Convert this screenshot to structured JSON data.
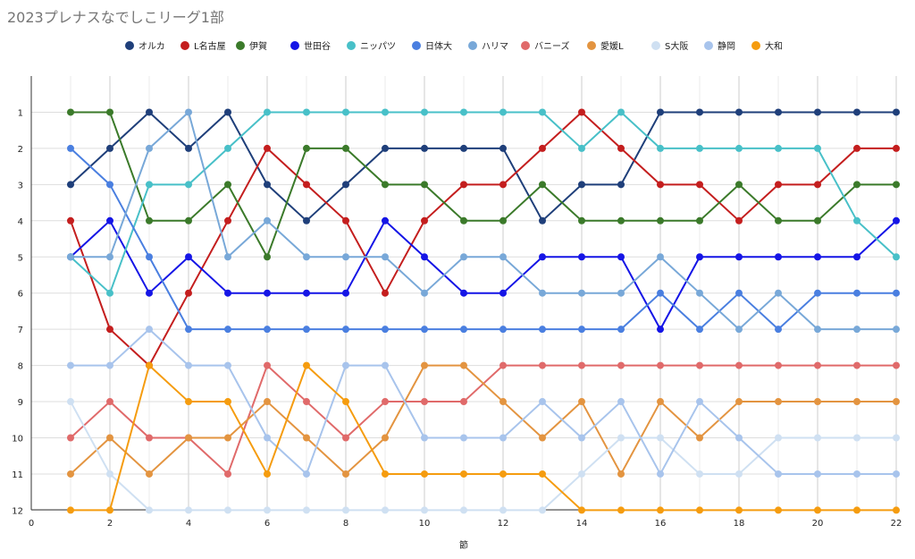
{
  "chart_data": {
    "type": "line",
    "title": "2023プレナスなでしこリーグ1部",
    "xlabel": "節",
    "ylabel": "",
    "xlim": [
      0,
      22
    ],
    "ylim": [
      1,
      12
    ],
    "y_reversed": true,
    "x_ticks": [
      0,
      2,
      4,
      6,
      8,
      10,
      12,
      14,
      16,
      18,
      20,
      22
    ],
    "y_ticks": [
      1,
      2,
      3,
      4,
      5,
      6,
      7,
      8,
      9,
      10,
      11,
      12
    ],
    "x": [
      1,
      2,
      3,
      4,
      5,
      6,
      7,
      8,
      9,
      10,
      11,
      12,
      13,
      14,
      15,
      16,
      17,
      18,
      19,
      20,
      21,
      22
    ],
    "grid": true,
    "legend_position": "top",
    "series": [
      {
        "name": "オルカ",
        "color": "#1f3f7a",
        "values": [
          3,
          2,
          1,
          2,
          1,
          3,
          4,
          3,
          2,
          2,
          2,
          2,
          4,
          3,
          3,
          1,
          1,
          1,
          1,
          1,
          1,
          1
        ]
      },
      {
        "name": "L名古屋",
        "color": "#c41e1e",
        "values": [
          4,
          7,
          8,
          6,
          4,
          2,
          3,
          4,
          6,
          4,
          3,
          3,
          2,
          1,
          2,
          3,
          3,
          4,
          3,
          3,
          2,
          2
        ]
      },
      {
        "name": "伊賀",
        "color": "#3b7a2a",
        "values": [
          1,
          1,
          4,
          4,
          3,
          5,
          2,
          2,
          3,
          3,
          4,
          4,
          3,
          4,
          4,
          4,
          4,
          3,
          4,
          4,
          3,
          3
        ]
      },
      {
        "name": "世田谷",
        "color": "#1515e6",
        "values": [
          5,
          4,
          6,
          5,
          6,
          6,
          6,
          6,
          4,
          5,
          6,
          6,
          5,
          5,
          5,
          7,
          5,
          5,
          5,
          5,
          5,
          4
        ]
      },
      {
        "name": "ニッパツ",
        "color": "#48c0c8",
        "values": [
          5,
          6,
          3,
          3,
          2,
          1,
          1,
          1,
          1,
          1,
          1,
          1,
          1,
          2,
          1,
          2,
          2,
          2,
          2,
          2,
          4,
          5
        ]
      },
      {
        "name": "日体大",
        "color": "#4a7fe0",
        "values": [
          2,
          3,
          5,
          7,
          7,
          7,
          7,
          7,
          7,
          7,
          7,
          7,
          7,
          7,
          7,
          6,
          7,
          6,
          7,
          6,
          6,
          6
        ]
      },
      {
        "name": "ハリマ",
        "color": "#78a8d8",
        "values": [
          5,
          5,
          2,
          1,
          5,
          4,
          5,
          5,
          5,
          6,
          5,
          5,
          6,
          6,
          6,
          5,
          6,
          7,
          6,
          7,
          7,
          7
        ]
      },
      {
        "name": "バニーズ",
        "color": "#e06a6a",
        "values": [
          10,
          9,
          10,
          10,
          11,
          8,
          9,
          10,
          9,
          9,
          9,
          8,
          8,
          8,
          8,
          8,
          8,
          8,
          8,
          8,
          8,
          8
        ]
      },
      {
        "name": "愛媛L",
        "color": "#e39440",
        "values": [
          11,
          10,
          11,
          10,
          10,
          9,
          10,
          11,
          10,
          8,
          8,
          9,
          10,
          9,
          11,
          9,
          10,
          9,
          9,
          9,
          9,
          9
        ]
      },
      {
        "name": "S大阪",
        "color": "#cfe0f2",
        "values": [
          9,
          11,
          12,
          12,
          12,
          12,
          12,
          12,
          12,
          12,
          12,
          12,
          12,
          11,
          10,
          10,
          11,
          11,
          10,
          10,
          10,
          10
        ]
      },
      {
        "name": "静岡",
        "color": "#a8c4ec",
        "values": [
          8,
          8,
          7,
          8,
          8,
          10,
          11,
          8,
          8,
          10,
          10,
          10,
          9,
          10,
          9,
          11,
          9,
          10,
          11,
          11,
          11,
          11
        ]
      },
      {
        "name": "大和",
        "color": "#f59c0f",
        "values": [
          12,
          12,
          8,
          9,
          9,
          11,
          8,
          9,
          11,
          11,
          11,
          11,
          11,
          12,
          12,
          12,
          12,
          12,
          12,
          12,
          12,
          12
        ]
      }
    ]
  }
}
